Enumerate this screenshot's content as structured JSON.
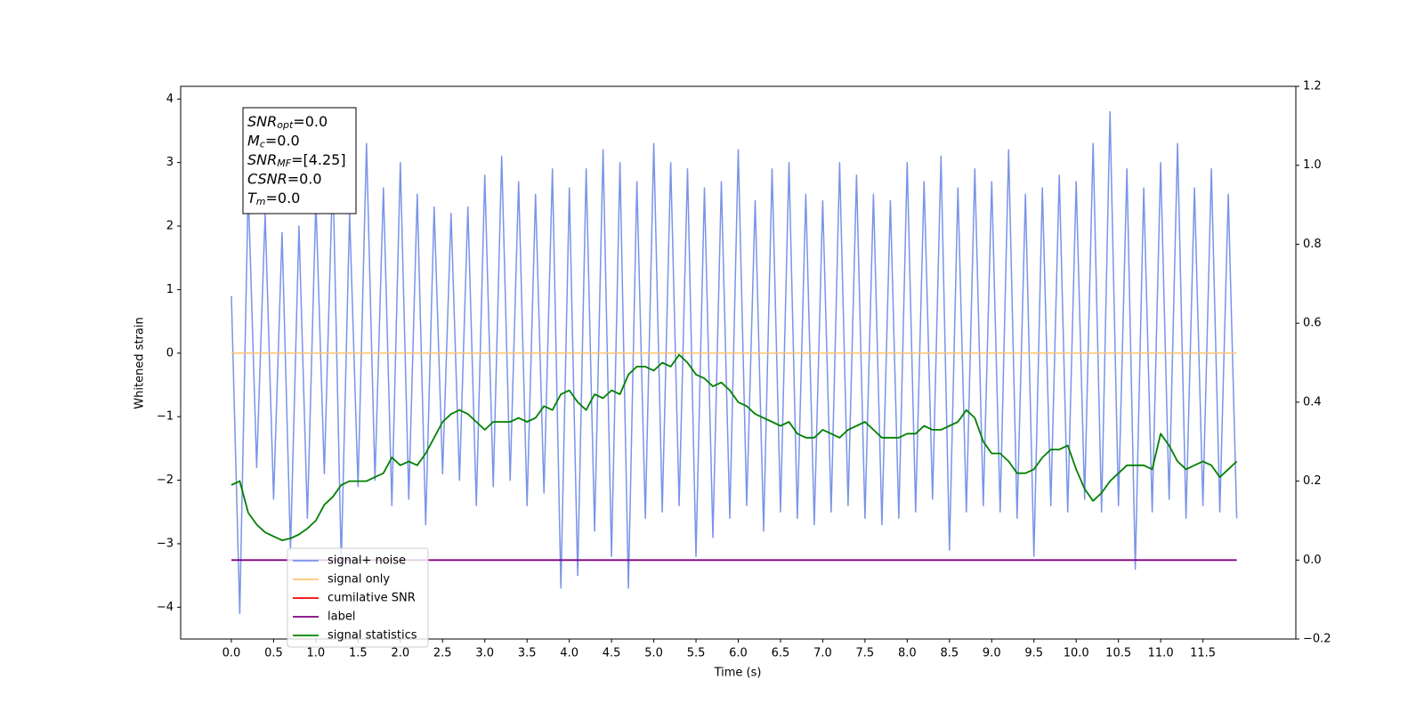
{
  "chart_data": {
    "type": "line",
    "x_label": "Time (s)",
    "y_label": "Whitened strain",
    "xlim": [
      -0.6,
      12.6
    ],
    "ylim": [
      -4.5,
      4.2
    ],
    "y2lim": [
      -0.2,
      1.2
    ],
    "xticks": [
      {
        "value": 0,
        "label": "0.0"
      },
      0.5,
      {
        "value": 1,
        "label": "1.0"
      },
      1.5,
      {
        "value": 2,
        "label": "2.0"
      },
      2.5,
      {
        "value": 3,
        "label": "3.0"
      },
      3.5,
      {
        "value": 4,
        "label": "4.0"
      },
      4.5,
      {
        "value": 5,
        "label": "5.0"
      },
      5.5,
      {
        "value": 6,
        "label": "6.0"
      },
      6.5,
      {
        "value": 7,
        "label": "7.0"
      },
      7.5,
      {
        "value": 8,
        "label": "8.0"
      },
      8.5,
      {
        "value": 9,
        "label": "9.0"
      },
      9.5,
      {
        "value": 10,
        "label": "10.0"
      },
      10.5,
      {
        "value": 11,
        "label": "11.0"
      },
      11.5
    ],
    "yticks": [
      {
        "value": -4,
        "label": "−4"
      },
      {
        "value": -3,
        "label": "−3"
      },
      {
        "value": -2,
        "label": "−2"
      },
      {
        "value": -1,
        "label": "−1"
      },
      0,
      1,
      2,
      3,
      4
    ],
    "y2ticks": [
      {
        "value": -0.2,
        "label": "−0.2"
      },
      {
        "value": 0,
        "label": "0.0"
      },
      0.2,
      0.4,
      0.6,
      0.8,
      {
        "value": 1,
        "label": "1.0"
      },
      1.2
    ],
    "annotation": [
      {
        "main": "SNR",
        "sub": "opt",
        "rest": "=0.0"
      },
      {
        "main": "M",
        "sub": "c",
        "rest": "=0.0"
      },
      {
        "main": "SNR",
        "sub": "MF",
        "rest": "=[4.25]"
      },
      {
        "main": "CSNR",
        "rest": "=0.0"
      },
      {
        "main": "T",
        "sub": "m",
        "rest": "=0.0"
      }
    ],
    "x": [
      0,
      0.1,
      0.2,
      0.3,
      0.4,
      0.5,
      0.6,
      0.7,
      0.8,
      0.9,
      1,
      1.1,
      1.2,
      1.3,
      1.4,
      1.5,
      1.6,
      1.7,
      1.8,
      1.9,
      2,
      2.1,
      2.2,
      2.3,
      2.4,
      2.5,
      2.6,
      2.7,
      2.8,
      2.9,
      3,
      3.1,
      3.2,
      3.3,
      3.4,
      3.5,
      3.6,
      3.7,
      3.8,
      3.9,
      4,
      4.1,
      4.2,
      4.3,
      4.4,
      4.5,
      4.6,
      4.7,
      4.8,
      4.9,
      5,
      5.1,
      5.2,
      5.3,
      5.4,
      5.5,
      5.6,
      5.7,
      5.8,
      5.9,
      6,
      6.1,
      6.2,
      6.3,
      6.4,
      6.5,
      6.6,
      6.7,
      6.8,
      6.9,
      7,
      7.1,
      7.2,
      7.3,
      7.4,
      7.5,
      7.6,
      7.7,
      7.8,
      7.9,
      8,
      8.1,
      8.2,
      8.3,
      8.4,
      8.5,
      8.6,
      8.7,
      8.8,
      8.9,
      9,
      9.1,
      9.2,
      9.3,
      9.4,
      9.5,
      9.6,
      9.7,
      9.8,
      9.9,
      10,
      10.1,
      10.2,
      10.3,
      10.4,
      10.5,
      10.6,
      10.7,
      10.8,
      10.9,
      11,
      11.1,
      11.2,
      11.3,
      11.4,
      11.5,
      11.6,
      11.7,
      11.8,
      11.9
    ],
    "series": [
      {
        "name": "signal+ noise",
        "color": "#7994e8",
        "values": [
          0.9,
          -4.1,
          2.6,
          -1.8,
          2.2,
          -2.3,
          1.9,
          -3.1,
          2.0,
          -2.6,
          2.4,
          -1.9,
          2.9,
          -3.3,
          2.2,
          -2.1,
          3.3,
          -2.0,
          2.6,
          -2.4,
          3.0,
          -2.3,
          2.5,
          -2.7,
          2.3,
          -1.9,
          2.2,
          -2.0,
          2.3,
          -2.4,
          2.8,
          -2.1,
          3.1,
          -2.0,
          2.7,
          -2.4,
          2.5,
          -2.2,
          2.9,
          -3.7,
          2.6,
          -3.5,
          2.9,
          -2.8,
          3.2,
          -3.2,
          3.0,
          -3.7,
          2.7,
          -2.6,
          3.3,
          -2.5,
          3.0,
          -2.4,
          2.9,
          -3.2,
          2.6,
          -2.9,
          2.7,
          -2.6,
          3.2,
          -2.4,
          2.4,
          -2.8,
          2.9,
          -2.5,
          3.0,
          -2.6,
          2.5,
          -2.7,
          2.4,
          -2.5,
          3.0,
          -2.4,
          2.8,
          -2.6,
          2.5,
          -2.7,
          2.4,
          -2.6,
          3.0,
          -2.5,
          2.7,
          -2.3,
          3.1,
          -3.1,
          2.6,
          -2.5,
          2.9,
          -2.4,
          2.7,
          -2.5,
          3.2,
          -2.6,
          2.5,
          -3.2,
          2.6,
          -2.4,
          2.8,
          -2.5,
          2.7,
          -2.3,
          3.3,
          -2.5,
          3.8,
          -2.4,
          2.9,
          -3.4,
          2.6,
          -2.5,
          3.0,
          -2.3,
          3.3,
          -2.6,
          2.6,
          -2.4,
          2.9,
          -2.5,
          2.5,
          -2.6
        ]
      },
      {
        "name": "signal only",
        "color": "#ffc36e",
        "values": [
          0,
          0,
          0,
          0,
          0,
          0,
          0,
          0,
          0,
          0,
          0,
          0,
          0,
          0,
          0,
          0,
          0,
          0,
          0,
          0,
          0,
          0,
          0,
          0,
          0,
          0,
          0,
          0,
          0,
          0,
          0,
          0,
          0,
          0,
          0,
          0,
          0,
          0,
          0,
          0,
          0,
          0,
          0,
          0,
          0,
          0,
          0,
          0,
          0,
          0,
          0,
          0,
          0,
          0,
          0,
          0,
          0,
          0,
          0,
          0,
          0,
          0,
          0,
          0,
          0,
          0,
          0,
          0,
          0,
          0,
          0,
          0,
          0,
          0,
          0,
          0,
          0,
          0,
          0,
          0,
          0,
          0,
          0,
          0,
          0,
          0,
          0,
          0,
          0,
          0,
          0,
          0,
          0,
          0,
          0,
          0,
          0,
          0,
          0,
          0,
          0,
          0,
          0,
          0,
          0,
          0,
          0,
          0,
          0,
          0,
          0,
          0,
          0,
          0,
          0,
          0,
          0,
          0,
          0,
          0
        ]
      },
      {
        "name": "cumilative SNR",
        "color": "#ff0000",
        "values": [
          null,
          null,
          null,
          null,
          null,
          null,
          null,
          null,
          null,
          null,
          null,
          null,
          null,
          null,
          null,
          null,
          null,
          null,
          null,
          null,
          null,
          null,
          null,
          null,
          null,
          null,
          null,
          null,
          null,
          null,
          null,
          null,
          null,
          null,
          null,
          null,
          null,
          null,
          null,
          null,
          null,
          null,
          null,
          null,
          null,
          null,
          null,
          null,
          null,
          null,
          null,
          null,
          null,
          null,
          null,
          null,
          null,
          null,
          null,
          null,
          null,
          null,
          null,
          null,
          null,
          null,
          null,
          null,
          null,
          null,
          null,
          null,
          null,
          null,
          null,
          null,
          null,
          null,
          null,
          null,
          null,
          null,
          null,
          null,
          null,
          null,
          null,
          null,
          null,
          null,
          null,
          null,
          null,
          null,
          null,
          null,
          null,
          null,
          null,
          null,
          null,
          null,
          null,
          null,
          null,
          null,
          null,
          null,
          null,
          null,
          null,
          null,
          null,
          null,
          null,
          null,
          null,
          null,
          null,
          null
        ]
      },
      {
        "name": "label",
        "color": "#800080",
        "axis": "y2",
        "values": [
          0,
          0,
          0,
          0,
          0,
          0,
          0,
          0,
          0,
          0,
          0,
          0,
          0,
          0,
          0,
          0,
          0,
          0,
          0,
          0,
          0,
          0,
          0,
          0,
          0,
          0,
          0,
          0,
          0,
          0,
          0,
          0,
          0,
          0,
          0,
          0,
          0,
          0,
          0,
          0,
          0,
          0,
          0,
          0,
          0,
          0,
          0,
          0,
          0,
          0,
          0,
          0,
          0,
          0,
          0,
          0,
          0,
          0,
          0,
          0,
          0,
          0,
          0,
          0,
          0,
          0,
          0,
          0,
          0,
          0,
          0,
          0,
          0,
          0,
          0,
          0,
          0,
          0,
          0,
          0,
          0,
          0,
          0,
          0,
          0,
          0,
          0,
          0,
          0,
          0,
          0,
          0,
          0,
          0,
          0,
          0,
          0,
          0,
          0,
          0,
          0,
          0,
          0,
          0,
          0,
          0,
          0,
          0,
          0,
          0,
          0,
          0,
          0,
          0,
          0,
          0,
          0,
          0,
          0,
          0
        ]
      },
      {
        "name": "signal statistics",
        "color": "#008000",
        "axis": "y2",
        "values": [
          0.19,
          0.2,
          0.12,
          0.09,
          0.07,
          0.06,
          0.05,
          0.055,
          0.065,
          0.08,
          0.1,
          0.14,
          0.16,
          0.19,
          0.2,
          0.2,
          0.2,
          0.21,
          0.22,
          0.26,
          0.24,
          0.25,
          0.24,
          0.27,
          0.31,
          0.35,
          0.37,
          0.38,
          0.37,
          0.35,
          0.33,
          0.35,
          0.35,
          0.35,
          0.36,
          0.35,
          0.36,
          0.39,
          0.38,
          0.42,
          0.43,
          0.4,
          0.38,
          0.42,
          0.41,
          0.43,
          0.42,
          0.47,
          0.49,
          0.49,
          0.48,
          0.5,
          0.49,
          0.52,
          0.5,
          0.47,
          0.46,
          0.44,
          0.45,
          0.43,
          0.4,
          0.39,
          0.37,
          0.36,
          0.35,
          0.34,
          0.35,
          0.32,
          0.31,
          0.31,
          0.33,
          0.32,
          0.31,
          0.33,
          0.34,
          0.35,
          0.33,
          0.31,
          0.31,
          0.31,
          0.32,
          0.32,
          0.34,
          0.33,
          0.33,
          0.34,
          0.35,
          0.38,
          0.36,
          0.3,
          0.27,
          0.27,
          0.25,
          0.22,
          0.22,
          0.23,
          0.26,
          0.28,
          0.28,
          0.29,
          0.23,
          0.18,
          0.15,
          0.17,
          0.2,
          0.22,
          0.24,
          0.24,
          0.24,
          0.23,
          0.32,
          0.29,
          0.25,
          0.23,
          0.24,
          0.25,
          0.24,
          0.21,
          0.23,
          0.25
        ]
      }
    ],
    "legend": "lower left"
  }
}
